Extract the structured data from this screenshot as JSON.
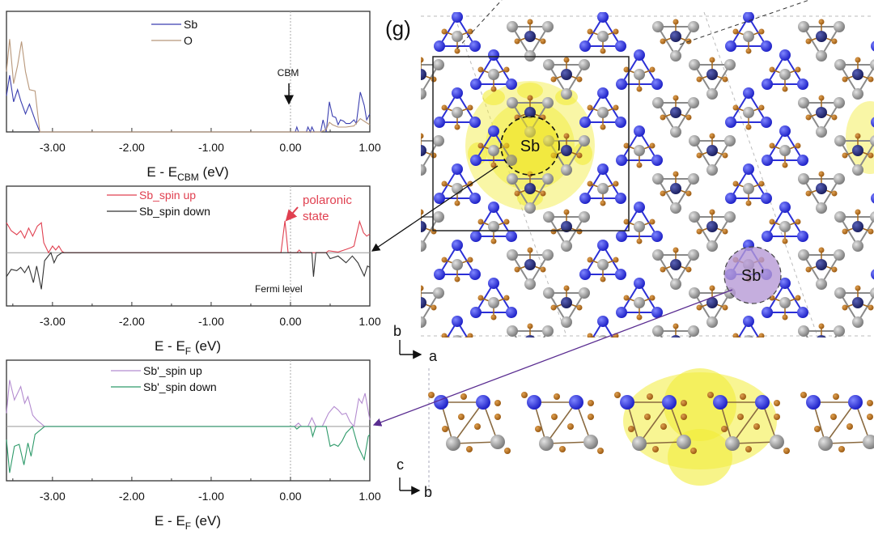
{
  "panel_label": "(g)",
  "structure": {
    "site_labels": [
      "Sb",
      "Sb'"
    ],
    "top_view_axes": {
      "vertical": "b",
      "horizontal": "a"
    },
    "side_view_axes": {
      "vertical": "c",
      "horizontal": "b"
    },
    "colors": {
      "sb_atom": "#2b2fd6",
      "sb_atom_dark": "#23287a",
      "o_atom": "#b8731e",
      "gray_atom": "#9a9a9a",
      "charge_density": "#f2ec3a",
      "sb_prime_highlight": "#b79ad6"
    }
  },
  "chart_data": [
    {
      "type": "line",
      "xlabel_main": "E - E",
      "xlabel_sub": "CBM",
      "xlabel_tail": " (eV)",
      "ylabel": "",
      "xlim": [
        -3.58,
        1.0
      ],
      "ylim": [
        0,
        1
      ],
      "xticks": [
        "-3.00",
        "-2.00",
        "-1.00",
        "0.00",
        "1.00"
      ],
      "xtick_values": [
        -3,
        -2,
        -1,
        0,
        1
      ],
      "reference_line_x": 0,
      "legend_position": "top-center",
      "annotations": [
        {
          "text": "CBM",
          "x": 0.0
        }
      ],
      "series": [
        {
          "name": "Sb",
          "color": "#3b3fb0",
          "points": [
            [
              -3.58,
              0.3
            ],
            [
              -3.54,
              0.47
            ],
            [
              -3.49,
              0.25
            ],
            [
              -3.44,
              0.35
            ],
            [
              -3.4,
              0.26
            ],
            [
              -3.34,
              0.15
            ],
            [
              -3.29,
              0.23
            ],
            [
              -3.22,
              0.1
            ],
            [
              -3.16,
              0
            ],
            [
              0.06,
              0
            ],
            [
              0.08,
              0.04
            ],
            [
              0.1,
              0
            ],
            [
              0.2,
              0
            ],
            [
              0.22,
              0.04
            ],
            [
              0.25,
              0
            ],
            [
              0.27,
              0.04
            ],
            [
              0.3,
              0
            ],
            [
              0.38,
              0
            ],
            [
              0.41,
              0.1
            ],
            [
              0.45,
              0
            ],
            [
              0.49,
              0.25
            ],
            [
              0.53,
              0.13
            ],
            [
              0.57,
              0.12
            ],
            [
              0.6,
              0.06
            ],
            [
              0.63,
              0.1
            ],
            [
              0.67,
              0.09
            ],
            [
              0.7,
              0.07
            ],
            [
              0.75,
              0.07
            ],
            [
              0.8,
              0.1
            ],
            [
              0.83,
              0.07
            ],
            [
              0.88,
              0.33
            ],
            [
              0.93,
              0.22
            ],
            [
              0.96,
              0.1
            ],
            [
              1,
              0.15
            ]
          ]
        },
        {
          "name": "O",
          "color": "#b8977a",
          "points": [
            [
              -3.58,
              0.5
            ],
            [
              -3.54,
              0.77
            ],
            [
              -3.49,
              0.4
            ],
            [
              -3.44,
              0.55
            ],
            [
              -3.39,
              0.75
            ],
            [
              -3.34,
              0.5
            ],
            [
              -3.29,
              0.35
            ],
            [
              -3.22,
              0.34
            ],
            [
              -3.16,
              0
            ],
            [
              0.38,
              0
            ],
            [
              0.45,
              0.02
            ],
            [
              0.49,
              0.08
            ],
            [
              0.53,
              0.06
            ],
            [
              0.6,
              0.04
            ],
            [
              0.7,
              0.04
            ],
            [
              0.8,
              0.05
            ],
            [
              0.88,
              0.11
            ],
            [
              0.95,
              0.08
            ],
            [
              1,
              0.06
            ]
          ]
        }
      ]
    },
    {
      "type": "line",
      "xlabel_main": "E - E",
      "xlabel_sub": "F",
      "xlabel_tail": " (eV)",
      "ylabel": "",
      "xlim": [
        -3.58,
        1.0
      ],
      "ylim": [
        -0.8,
        1
      ],
      "xticks": [
        "-3.00",
        "-2.00",
        "-1.00",
        "0.00",
        "1.00"
      ],
      "xtick_values": [
        -3,
        -2,
        -1,
        0,
        1
      ],
      "reference_line_x": 0,
      "legend_position": "top-left",
      "annotations": [
        {
          "text_line1": "polaronic",
          "text_line2": "state",
          "x": -0.07,
          "color": "#e04050"
        },
        {
          "text": "Fermi level",
          "x": 0.0
        }
      ],
      "series": [
        {
          "name": "Sb_spin up",
          "color": "#e04050",
          "points": [
            [
              -3.58,
              0.45
            ],
            [
              -3.52,
              0.33
            ],
            [
              -3.45,
              0.27
            ],
            [
              -3.4,
              0.33
            ],
            [
              -3.35,
              0.22
            ],
            [
              -3.3,
              0.37
            ],
            [
              -3.25,
              0.25
            ],
            [
              -3.19,
              0.4
            ],
            [
              -3.14,
              0.45
            ],
            [
              -3.11,
              0.15
            ],
            [
              -3.05,
              0
            ],
            [
              -3.0,
              0.1
            ],
            [
              -2.96,
              0.04
            ],
            [
              -2.92,
              0.1
            ],
            [
              -2.88,
              0.02
            ],
            [
              -2.85,
              0
            ],
            [
              -0.12,
              0
            ],
            [
              -0.07,
              0.48
            ],
            [
              -0.03,
              0
            ],
            [
              0.08,
              0
            ],
            [
              0.11,
              0.04
            ],
            [
              0.14,
              0
            ],
            [
              0.45,
              0
            ],
            [
              0.48,
              0.03
            ],
            [
              0.6,
              0.01
            ],
            [
              0.7,
              0.05
            ],
            [
              0.77,
              0.08
            ],
            [
              0.8,
              0.1
            ],
            [
              0.87,
              0.47
            ],
            [
              0.92,
              0.3
            ],
            [
              0.96,
              0.25
            ],
            [
              1,
              0.28
            ]
          ]
        },
        {
          "name": "Sb_spin down",
          "color": "#333333",
          "points": [
            [
              -3.58,
              -0.36
            ],
            [
              -3.52,
              -0.25
            ],
            [
              -3.45,
              -0.27
            ],
            [
              -3.4,
              -0.22
            ],
            [
              -3.35,
              -0.3
            ],
            [
              -3.3,
              -0.2
            ],
            [
              -3.24,
              -0.45
            ],
            [
              -3.2,
              -0.2
            ],
            [
              -3.14,
              -0.55
            ],
            [
              -3.1,
              -0.12
            ],
            [
              -3.02,
              0
            ],
            [
              -2.98,
              -0.15
            ],
            [
              -2.94,
              -0.05
            ],
            [
              -2.88,
              0
            ],
            [
              0.27,
              0
            ],
            [
              0.29,
              -0.36
            ],
            [
              0.32,
              0
            ],
            [
              0.45,
              0
            ],
            [
              0.5,
              -0.09
            ],
            [
              0.6,
              -0.05
            ],
            [
              0.7,
              -0.15
            ],
            [
              0.78,
              -0.05
            ],
            [
              0.85,
              -0.15
            ],
            [
              0.93,
              -0.35
            ],
            [
              0.97,
              -0.2
            ],
            [
              1,
              -0.22
            ]
          ]
        }
      ]
    },
    {
      "type": "line",
      "xlabel_main": "E - E",
      "xlabel_sub": "F",
      "xlabel_tail": " (eV)",
      "ylabel": "",
      "xlim": [
        -3.58,
        1.0
      ],
      "ylim": [
        -0.82,
        1
      ],
      "xticks": [
        "-3.00",
        "-2.00",
        "-1.00",
        "0.00",
        "1.00"
      ],
      "xtick_values": [
        -3,
        -2,
        -1,
        0,
        1
      ],
      "reference_line_x": 0,
      "legend_position": "top-left",
      "series": [
        {
          "name": "Sb'_spin up",
          "color": "#b48cd0",
          "points": [
            [
              -3.58,
              0.2
            ],
            [
              -3.54,
              0.7
            ],
            [
              -3.48,
              0.4
            ],
            [
              -3.4,
              0.6
            ],
            [
              -3.35,
              0.35
            ],
            [
              -3.31,
              0.45
            ],
            [
              -3.25,
              0.17
            ],
            [
              -3.2,
              0.1
            ],
            [
              -3.1,
              0
            ],
            [
              0.05,
              0
            ],
            [
              0.1,
              0.05
            ],
            [
              0.14,
              0
            ],
            [
              0.22,
              0
            ],
            [
              0.27,
              0.13
            ],
            [
              0.32,
              0
            ],
            [
              0.4,
              0
            ],
            [
              0.48,
              0.2
            ],
            [
              0.55,
              0.3
            ],
            [
              0.6,
              0.25
            ],
            [
              0.65,
              0.18
            ],
            [
              0.7,
              0.2
            ],
            [
              0.75,
              0.07
            ],
            [
              0.8,
              0
            ],
            [
              0.86,
              0.42
            ],
            [
              0.9,
              0.35
            ],
            [
              0.94,
              0.5
            ],
            [
              1,
              0.1
            ]
          ]
        },
        {
          "name": "Sb'_spin down",
          "color": "#2e9a6a",
          "points": [
            [
              -3.58,
              -0.2
            ],
            [
              -3.54,
              -0.7
            ],
            [
              -3.48,
              -0.3
            ],
            [
              -3.42,
              -0.27
            ],
            [
              -3.36,
              -0.58
            ],
            [
              -3.31,
              -0.25
            ],
            [
              -3.27,
              -0.45
            ],
            [
              -3.22,
              -0.12
            ],
            [
              -3.1,
              0
            ],
            [
              0.05,
              0
            ],
            [
              0.08,
              -0.04
            ],
            [
              0.12,
              0
            ],
            [
              0.25,
              0
            ],
            [
              0.28,
              -0.15
            ],
            [
              0.32,
              0
            ],
            [
              0.45,
              0
            ],
            [
              0.5,
              -0.3
            ],
            [
              0.55,
              -0.27
            ],
            [
              0.6,
              -0.3
            ],
            [
              0.65,
              -0.22
            ],
            [
              0.7,
              -0.1
            ],
            [
              0.78,
              0
            ],
            [
              0.85,
              -0.3
            ],
            [
              0.93,
              -0.5
            ],
            [
              0.98,
              -0.15
            ],
            [
              1,
              -0.12
            ]
          ]
        }
      ]
    }
  ]
}
